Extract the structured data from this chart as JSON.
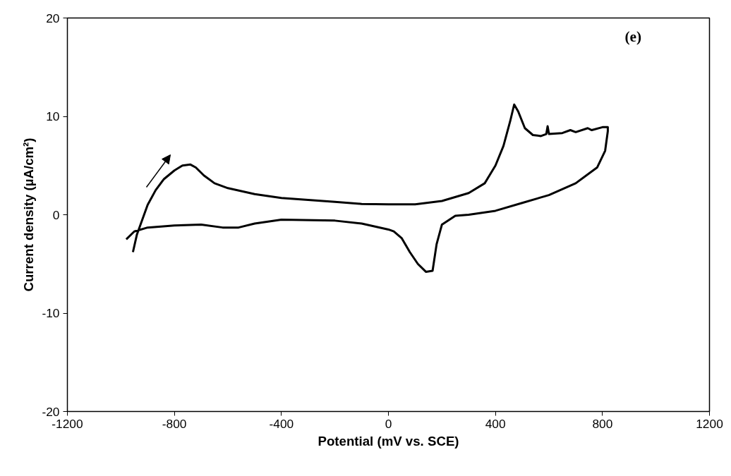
{
  "chart_data": {
    "type": "line",
    "xlabel": "Potential (mV vs. SCE)",
    "ylabel": "Current density (µA/cm²)",
    "annotations": [
      "(e)"
    ],
    "series": [
      {
        "color": "#000000",
        "x": [
          -955,
          -940,
          -920,
          -900,
          -870,
          -840,
          -800,
          -770,
          -740,
          -720,
          -690,
          -650,
          -600,
          -500,
          -400,
          -300,
          -200,
          -100,
          0,
          100,
          200,
          300,
          360,
          400,
          430,
          455,
          470,
          485,
          510,
          540,
          570,
          590,
          595,
          600,
          650,
          680,
          700,
          745,
          760,
          800,
          820,
          820,
          810,
          780,
          700,
          600,
          500,
          400,
          300,
          250,
          200,
          180,
          165,
          140,
          110,
          80,
          50,
          20,
          0,
          -100,
          -200,
          -400,
          -500,
          -560,
          -620,
          -700,
          -800,
          -900,
          -950,
          -980
        ],
        "values": [
          -3.8,
          -2,
          -0.5,
          1,
          2.5,
          3.6,
          4.5,
          5,
          5.1,
          4.8,
          4.0,
          3.2,
          2.7,
          2.1,
          1.7,
          1.5,
          1.3,
          1.1,
          1.05,
          1.05,
          1.4,
          2.2,
          3.2,
          5,
          7,
          9.5,
          11.2,
          10.5,
          8.8,
          8.1,
          8.0,
          8.2,
          9.0,
          8.2,
          8.3,
          8.6,
          8.4,
          8.8,
          8.6,
          8.9,
          8.9,
          8.5,
          6.5,
          4.8,
          3.2,
          2.0,
          1.2,
          0.4,
          0.0,
          -0.1,
          -1.0,
          -3,
          -5.7,
          -5.8,
          -5,
          -3.8,
          -2.4,
          -1.7,
          -1.5,
          -0.9,
          -0.6,
          -0.5,
          -0.9,
          -1.3,
          -1.3,
          -1.0,
          -1.1,
          -1.3,
          -1.7,
          -2.5
        ]
      }
    ],
    "xlim": [
      -1200,
      1200
    ],
    "xticks": [
      -1200,
      -800,
      -400,
      0,
      400,
      800,
      1200
    ],
    "ylim": [
      -20,
      20
    ],
    "yticks": [
      -20,
      -10,
      0,
      10,
      20
    ],
    "grid": false,
    "marker": "none",
    "line_style": "solid"
  }
}
